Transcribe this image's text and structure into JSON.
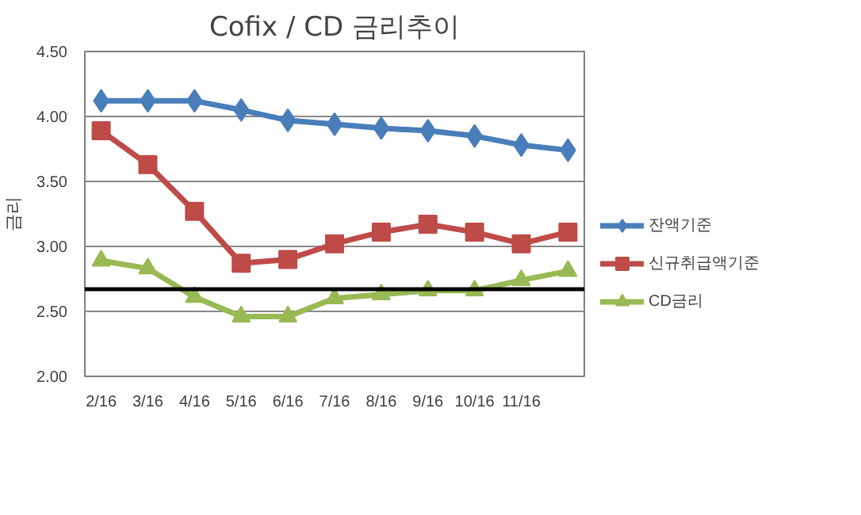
{
  "chart_data": {
    "type": "line",
    "title": "Cofix / CD 금리추이",
    "ylabel": "금리",
    "categories": [
      "2/16",
      "3/16",
      "4/16",
      "5/16",
      "6/16",
      "7/16",
      "8/16",
      "9/16",
      "10/16",
      "11/16",
      null
    ],
    "series": [
      {
        "name": "잔액기준",
        "color": "#4a7ebb",
        "marker": "diamond",
        "values": [
          4.12,
          4.12,
          4.12,
          4.05,
          3.97,
          3.94,
          3.91,
          3.89,
          3.85,
          3.78,
          3.74
        ]
      },
      {
        "name": "신규취급액기준",
        "color": "#be4b48",
        "marker": "square",
        "values": [
          3.89,
          3.63,
          3.27,
          2.87,
          2.9,
          3.02,
          3.11,
          3.17,
          3.11,
          3.02,
          3.11
        ]
      },
      {
        "name": "CD금리",
        "color": "#98b954",
        "marker": "triangle",
        "values": [
          2.89,
          2.83,
          2.61,
          2.46,
          2.46,
          2.6,
          2.63,
          2.66,
          2.66,
          2.74,
          2.81
        ]
      }
    ],
    "ylim": [
      2.0,
      4.5
    ],
    "yticks": [
      {
        "value": 2.0,
        "label": "2.00"
      },
      {
        "value": 2.5,
        "label": "2.50"
      },
      {
        "value": 3.0,
        "label": "3.00"
      },
      {
        "value": 3.5,
        "label": "3.50"
      },
      {
        "value": 4.0,
        "label": "4.00"
      },
      {
        "value": 4.5,
        "label": "4.50"
      }
    ],
    "ref_lines": [
      {
        "axis": "y",
        "value": 2.67,
        "color": "#000000"
      }
    ],
    "grid": "y",
    "legend": "right",
    "line_style": "solid"
  }
}
